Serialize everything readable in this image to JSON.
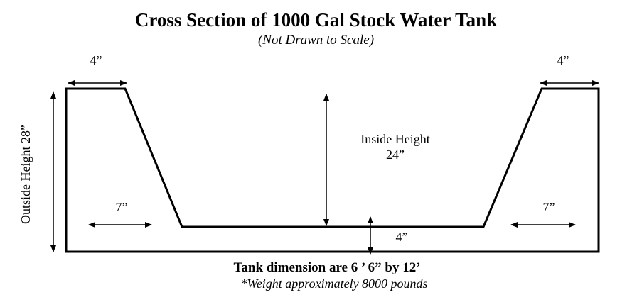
{
  "title": "Cross Section of 1000 Gal Stock Water Tank",
  "subtitle": "(Not Drawn to Scale)",
  "labels": {
    "top_left_width": "4”",
    "top_right_width": "4”",
    "outside_height": "Outside Height  28”",
    "inside_height_line1": "Inside Height",
    "inside_height_line2": "24”",
    "left_slope_width": "7”",
    "right_slope_width": "7”",
    "bottom_thickness": "4”"
  },
  "caption": {
    "dimensions": "Tank dimension are 6 ’ 6” by 12’",
    "weight": "*Weight approximately 8000 pounds"
  },
  "colors": {
    "line": "#000000",
    "background": "#ffffff"
  }
}
